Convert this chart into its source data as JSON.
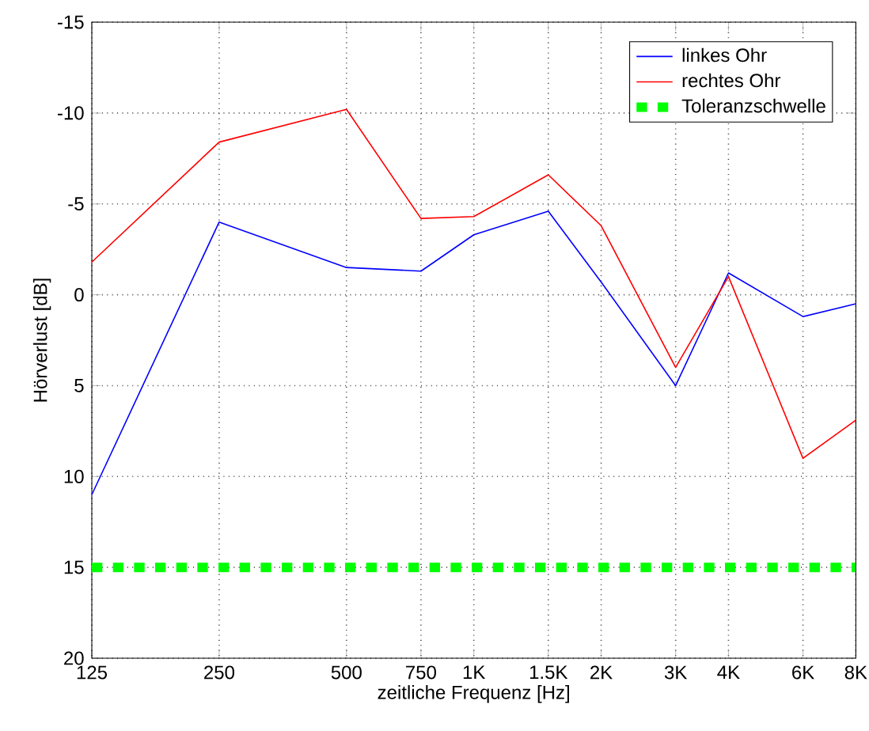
{
  "chart_data": {
    "type": "line",
    "xlabel": "zeitliche Frequenz [Hz]",
    "ylabel": "Hörverlust [dB]",
    "x": [
      125,
      250,
      500,
      750,
      1000,
      1500,
      2000,
      3000,
      4000,
      6000,
      8000
    ],
    "series": [
      {
        "name": "linkes Ohr",
        "color": "#0000ff",
        "line_style": "solid",
        "values": [
          11,
          -4,
          -1.5,
          -1.3,
          -3.3,
          -4.6,
          -0.7,
          5,
          -1.2,
          1.2,
          0.5
        ]
      },
      {
        "name": "rechtes Ohr",
        "color": "#ff0000",
        "line_style": "solid",
        "values": [
          -1.8,
          -8.4,
          -10.2,
          -4.2,
          -4.3,
          -6.6,
          -3.8,
          4,
          -1,
          9,
          6.9
        ]
      },
      {
        "name": "Toleranzschwelle",
        "color": "#00ff00",
        "line_style": "dashed",
        "values": [
          15,
          15,
          15,
          15,
          15,
          15,
          15,
          15,
          15,
          15,
          15
        ]
      }
    ],
    "log": "x",
    "xlim": [
      125,
      8000
    ],
    "ylim": [
      20,
      -15
    ],
    "xticks": [
      125,
      250,
      500,
      750,
      {
        "value": 1000,
        "label": "1K"
      },
      {
        "value": 1500,
        "label": "1.5K"
      },
      {
        "value": 2000,
        "label": "2K"
      },
      {
        "value": 3000,
        "label": "3K"
      },
      {
        "value": 4000,
        "label": "4K"
      },
      {
        "value": 6000,
        "label": "6K"
      },
      {
        "value": 8000,
        "label": "8K"
      }
    ],
    "yticks": [
      -15,
      -10,
      -5,
      0,
      5,
      10,
      15,
      20
    ],
    "grid": true,
    "legend": "top right",
    "marker": "none"
  }
}
